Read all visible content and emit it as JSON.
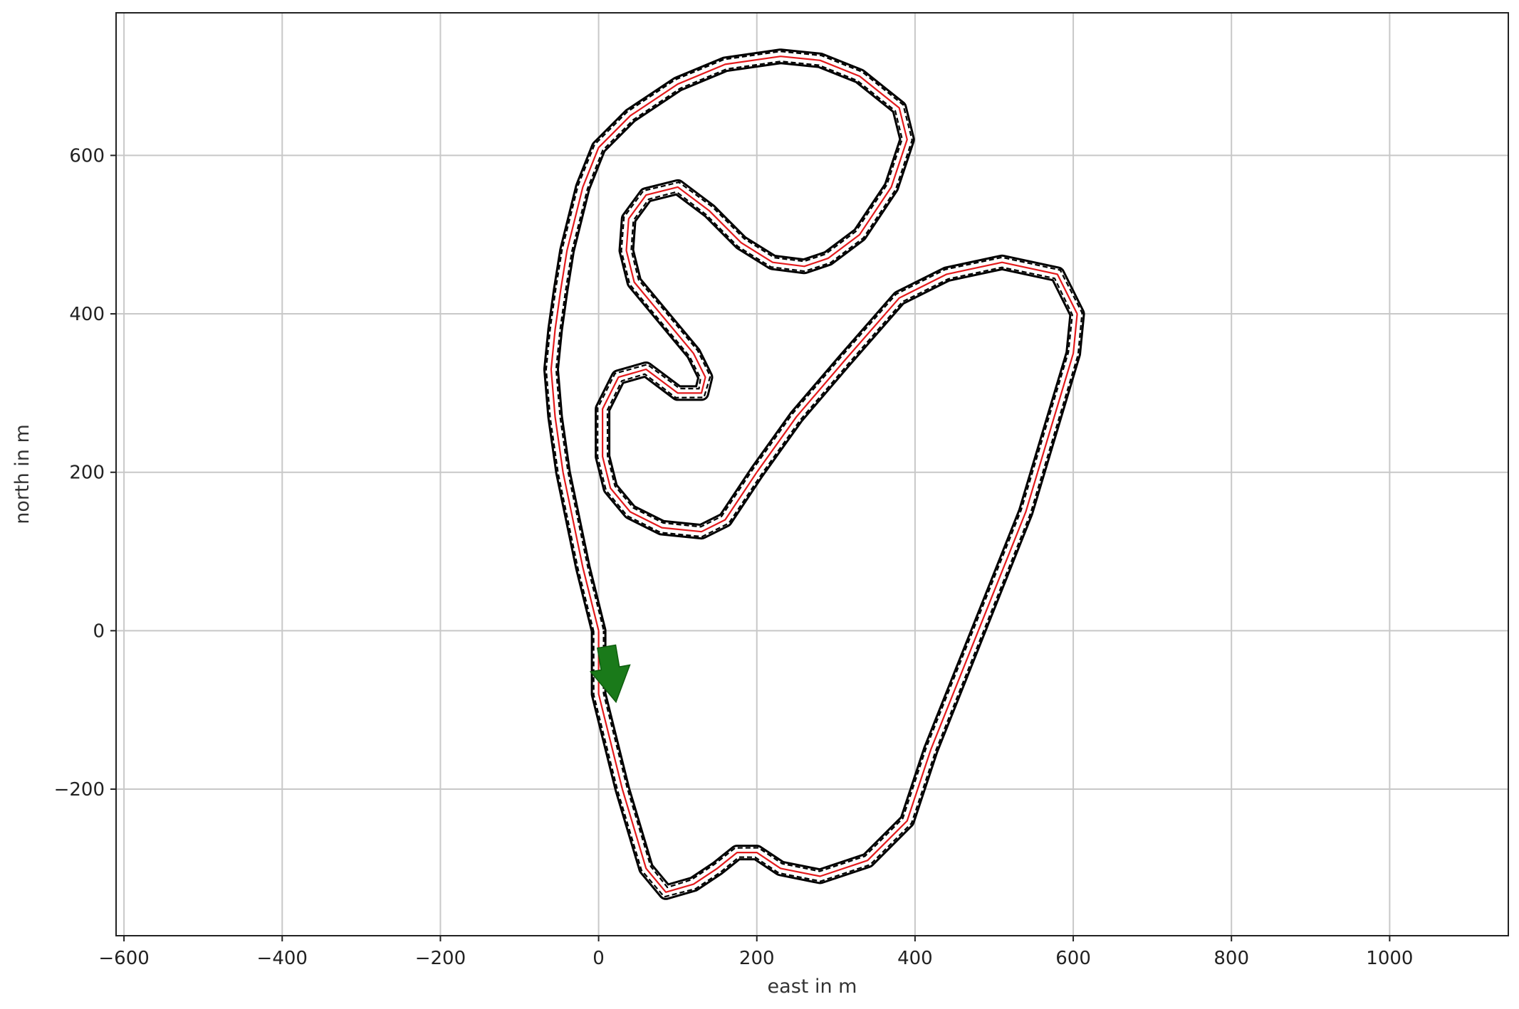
{
  "chart_data": {
    "type": "line",
    "title": "",
    "xlabel": "east in m",
    "ylabel": "north in m",
    "xlim": [
      -610,
      1150
    ],
    "ylim": [
      -385,
      780
    ],
    "xticks": [
      -600,
      -400,
      -200,
      0,
      200,
      400,
      600,
      800,
      1000
    ],
    "yticks": [
      -200,
      0,
      200,
      400,
      600
    ],
    "grid": true,
    "colors": {
      "centerline": "#e31a1c",
      "boundary": "#000000",
      "arrow": "#1a7a1a",
      "grid": "#c8c8c8"
    },
    "series": [
      {
        "style": "solid red centerline",
        "x": [
          0,
          -20,
          -45,
          -55,
          -60,
          -55,
          -48,
          -40,
          -30,
          -20,
          0,
          40,
          100,
          160,
          230,
          280,
          330,
          380,
          390,
          370,
          330,
          290,
          260,
          220,
          180,
          140,
          100,
          60,
          38,
          35,
          45,
          70,
          95,
          120,
          135,
          130,
          100,
          60,
          25,
          5,
          5,
          15,
          40,
          80,
          130,
          160,
          200,
          250,
          310,
          380,
          440,
          510,
          580,
          605,
          600,
          570,
          540,
          500,
          460,
          420,
          390,
          340,
          280,
          230,
          200,
          175,
          150,
          120,
          85,
          60,
          30,
          0
        ],
        "y": [
          0,
          80,
          200,
          270,
          330,
          380,
          430,
          480,
          520,
          560,
          610,
          650,
          690,
          715,
          725,
          720,
          700,
          660,
          620,
          560,
          500,
          470,
          460,
          465,
          490,
          530,
          560,
          550,
          520,
          480,
          440,
          410,
          380,
          350,
          320,
          300,
          300,
          330,
          320,
          280,
          220,
          180,
          150,
          130,
          125,
          140,
          200,
          270,
          340,
          420,
          450,
          465,
          450,
          400,
          350,
          250,
          150,
          50,
          -50,
          -150,
          -240,
          -290,
          -310,
          -300,
          -280,
          -280,
          -300,
          -320,
          -330,
          -300,
          -200,
          -80
        ]
      },
      {
        "style": "dashed black boundary (left/outer)",
        "x": [
          0,
          -20,
          -45,
          -55,
          -60,
          -55,
          -48,
          -40,
          -30,
          -20,
          0,
          40,
          100,
          160,
          230,
          280,
          330,
          380,
          390,
          370,
          330,
          290,
          260,
          220,
          180,
          140,
          100,
          60,
          38,
          35,
          45,
          70,
          95,
          120,
          135,
          130,
          100,
          60,
          25,
          5,
          5,
          15,
          40,
          80,
          130,
          160,
          200,
          250,
          310,
          380,
          440,
          510,
          580,
          605,
          600,
          570,
          540,
          500,
          460,
          420,
          390,
          340,
          280,
          230,
          200,
          175,
          150,
          120,
          85,
          60,
          30,
          0
        ],
        "y": [
          0,
          80,
          200,
          270,
          330,
          380,
          430,
          480,
          520,
          560,
          610,
          650,
          690,
          715,
          725,
          720,
          700,
          660,
          620,
          560,
          500,
          470,
          460,
          465,
          490,
          530,
          560,
          550,
          520,
          480,
          440,
          410,
          380,
          350,
          320,
          300,
          300,
          330,
          320,
          280,
          220,
          180,
          150,
          130,
          125,
          140,
          200,
          270,
          340,
          420,
          450,
          465,
          450,
          400,
          350,
          250,
          150,
          50,
          -50,
          -150,
          -240,
          -290,
          -310,
          -300,
          -280,
          -280,
          -300,
          -320,
          -330,
          -300,
          -200,
          -80
        ]
      }
    ],
    "annotations": [
      {
        "type": "start-arrow",
        "x": 10,
        "y": -20,
        "dx": 12,
        "dy": -70
      }
    ]
  }
}
